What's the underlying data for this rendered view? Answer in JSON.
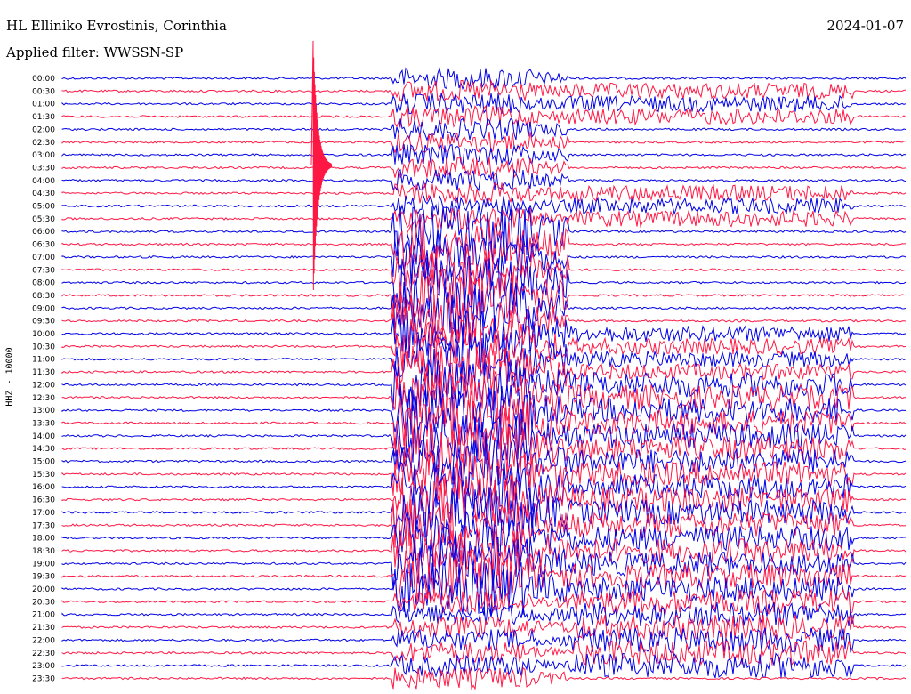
{
  "header": {
    "station": "HL Elliniko Evrostinis, Corinthia",
    "date": "2024-01-07",
    "filter": "Applied filter: WWSSN-SP",
    "channel": "HHZ - 10000"
  },
  "colors": {
    "blue_trace": "#0000e6",
    "red_trace": "#ff1744",
    "background": "#ffffff"
  },
  "chart_data": {
    "type": "helicorder",
    "title": "HL Elliniko Evrostinis, Corinthia",
    "date": "2024-01-07",
    "filter": "WWSSN-SP",
    "channel": "HHZ - 10000",
    "row_interval_minutes": 30,
    "row_colors": [
      "blue",
      "red"
    ],
    "rows": [
      "00:00",
      "00:30",
      "01:00",
      "01:30",
      "02:00",
      "02:30",
      "03:00",
      "03:30",
      "04:00",
      "04:30",
      "05:00",
      "05:30",
      "06:00",
      "06:30",
      "07:00",
      "07:30",
      "08:00",
      "08:30",
      "09:00",
      "09:30",
      "10:00",
      "10:30",
      "11:00",
      "11:30",
      "12:00",
      "12:30",
      "13:00",
      "13:30",
      "14:00",
      "14:30",
      "15:00",
      "15:30",
      "16:00",
      "16:30",
      "17:00",
      "17:30",
      "18:00",
      "18:30",
      "19:00",
      "19:30",
      "20:00",
      "20:30",
      "21:00",
      "21:30",
      "22:00",
      "22:30",
      "23:00",
      "23:30"
    ]
  }
}
